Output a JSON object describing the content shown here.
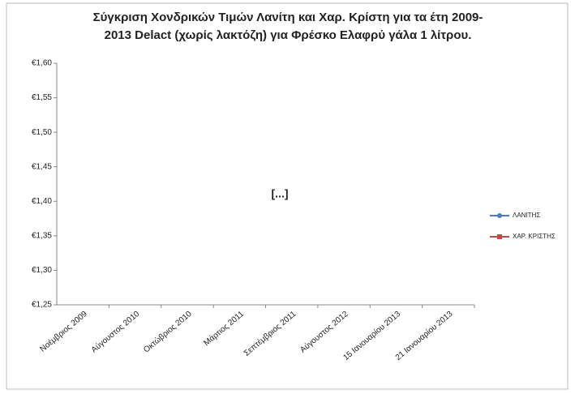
{
  "chart_data": {
    "type": "line",
    "title": [
      "Σύγκριση Χονδρικών Τιμών Λανίτη και Χαρ. Κρίστη  για τα έτη 2009-",
      "2013  Delact (χωρίς λακτόζη) για Φρέσκο  Ελαφρύ γάλα 1 λίτρου."
    ],
    "annotation": "[...]",
    "categories": [
      "Νοέμβριος 2009",
      "Αύγουστος 2010",
      "Οκτώβριος 2010",
      "Μάρτιος 2011",
      "Σεπτέμβριος 2011",
      "Αύγουστος 2012",
      "15 Ιανουαρίου 2013",
      "21 Ιανουαρίου 2013"
    ],
    "series": [
      {
        "name": "ΛΑΝΙΤΗΣ",
        "color": "#4a7ebb",
        "values": [
          null,
          null,
          null,
          null,
          null,
          null,
          null,
          null
        ]
      },
      {
        "name": "ΧΑΡ. ΚΡΙΣΤΗΣ",
        "color": "#be4b48",
        "values": [
          null,
          null,
          null,
          null,
          null,
          null,
          null,
          null
        ]
      }
    ],
    "ylim": [
      1.25,
      1.6
    ],
    "yticks": [
      {
        "value": 1.25,
        "label": "€1,25"
      },
      {
        "value": 1.3,
        "label": "€1,30"
      },
      {
        "value": 1.35,
        "label": "€1,35"
      },
      {
        "value": 1.4,
        "label": "€1,40"
      },
      {
        "value": 1.45,
        "label": "€1,45"
      },
      {
        "value": 1.5,
        "label": "€1,50"
      },
      {
        "value": 1.55,
        "label": "€1,55"
      },
      {
        "value": 1.6,
        "label": "€1,60"
      }
    ],
    "grid": false,
    "legend": "right"
  }
}
